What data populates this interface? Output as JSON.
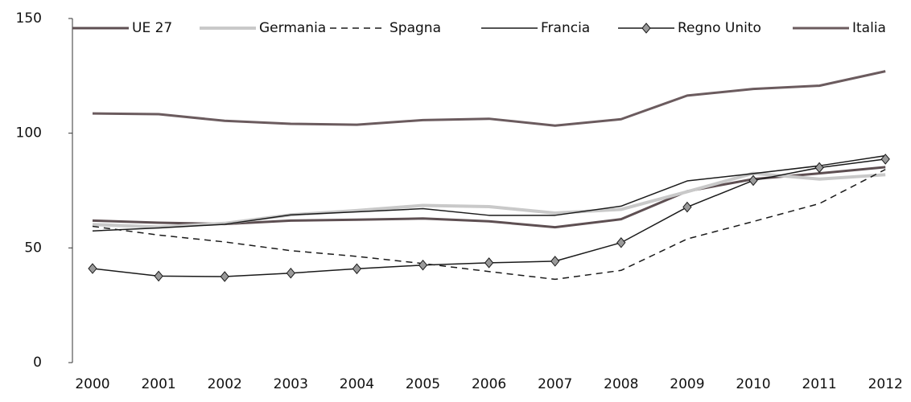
{
  "chart_data": {
    "type": "line",
    "categories": [
      "2000",
      "2001",
      "2002",
      "2003",
      "2004",
      "2005",
      "2006",
      "2007",
      "2008",
      "2009",
      "2010",
      "2011",
      "2012"
    ],
    "ylim": [
      0,
      150
    ],
    "yticks": [
      0,
      50,
      100,
      150
    ],
    "grid": false,
    "legend": "top",
    "series": [
      {
        "name": "UE 27",
        "color": "#5e4f52",
        "line_width": 3,
        "line_style": "solid",
        "marker": "none",
        "values": [
          61.9,
          61.0,
          60.4,
          61.9,
          62.3,
          62.8,
          61.6,
          59.0,
          62.5,
          74.7,
          80.0,
          82.5,
          85.2
        ]
      },
      {
        "name": "Germania",
        "color": "#c9c9c9",
        "line_width": 4,
        "line_style": "solid",
        "marker": "none",
        "values": [
          60.2,
          59.1,
          60.7,
          64.4,
          66.3,
          68.5,
          68.0,
          65.2,
          66.8,
          74.5,
          82.5,
          80.0,
          81.9
        ]
      },
      {
        "name": "Spagna",
        "color": "#1a1a1a",
        "line_width": 1.5,
        "line_style": "dashed",
        "marker": "none",
        "values": [
          59.4,
          55.6,
          52.6,
          48.8,
          46.3,
          43.2,
          39.7,
          36.3,
          40.2,
          53.9,
          61.5,
          69.3,
          84.2
        ]
      },
      {
        "name": "Francia",
        "color": "#1a1a1a",
        "line_width": 1.5,
        "line_style": "solid",
        "marker": "none",
        "values": [
          57.4,
          58.7,
          60.3,
          64.4,
          65.7,
          67.1,
          64.2,
          64.2,
          68.2,
          79.2,
          82.4,
          85.8,
          90.2
        ]
      },
      {
        "name": "Regno Unito",
        "color": "#1a1a1a",
        "line_width": 1.5,
        "line_style": "solid",
        "marker": "diamond",
        "values": [
          41.0,
          37.7,
          37.5,
          39.0,
          40.9,
          42.5,
          43.5,
          44.2,
          52.3,
          67.8,
          79.4,
          85.0,
          88.7
        ]
      },
      {
        "name": "Italia",
        "color": "#6b5b5e",
        "line_width": 3,
        "line_style": "solid",
        "marker": "none",
        "values": [
          108.6,
          108.3,
          105.4,
          104.1,
          103.7,
          105.7,
          106.3,
          103.3,
          106.1,
          116.4,
          119.3,
          120.7,
          127.0
        ]
      }
    ]
  }
}
